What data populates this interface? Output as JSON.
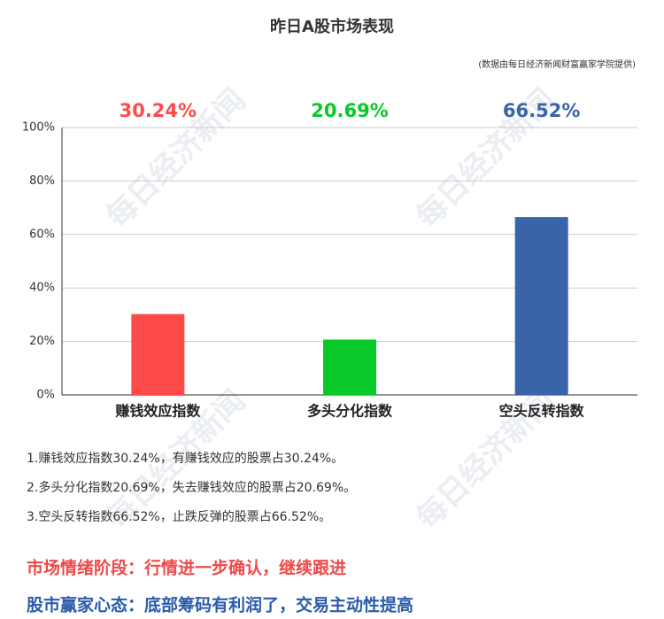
{
  "watermark": "每日经济新闻",
  "chart_data": {
    "type": "bar",
    "title": "昨日A股市场表现",
    "subtitle": "(数据由每日经济新闻财富赢家学院提供)",
    "categories": [
      "赚钱效应指数",
      "多头分化指数",
      "空头反转指数"
    ],
    "values": [
      30.24,
      20.69,
      66.52
    ],
    "value_labels": [
      "30.24%",
      "20.69%",
      "66.52%"
    ],
    "colors": [
      "#ff4a4a",
      "#08c82a",
      "#3a64a8"
    ],
    "ylim": [
      0,
      100
    ],
    "yticks": [
      {
        "value": 0,
        "label": "0%"
      },
      {
        "value": 20,
        "label": "20%"
      },
      {
        "value": 40,
        "label": "40%"
      },
      {
        "value": 60,
        "label": "60%"
      },
      {
        "value": 80,
        "label": "80%"
      },
      {
        "value": 100,
        "label": "100%"
      }
    ],
    "grid": true
  },
  "notes": [
    "1.赚钱效应指数30.24%，有赚钱效应的股票占30.24%。",
    "2.多头分化指数20.69%，失去赚钱效应的股票占20.69%。",
    "3.空头反转指数66.52%，止跌反弹的股票占66.52%。"
  ],
  "stage": "市场情绪阶段：行情进一步确认，继续跟进",
  "mood": "股市赢家心态：底部筹码有利润了，交易主动性提高"
}
